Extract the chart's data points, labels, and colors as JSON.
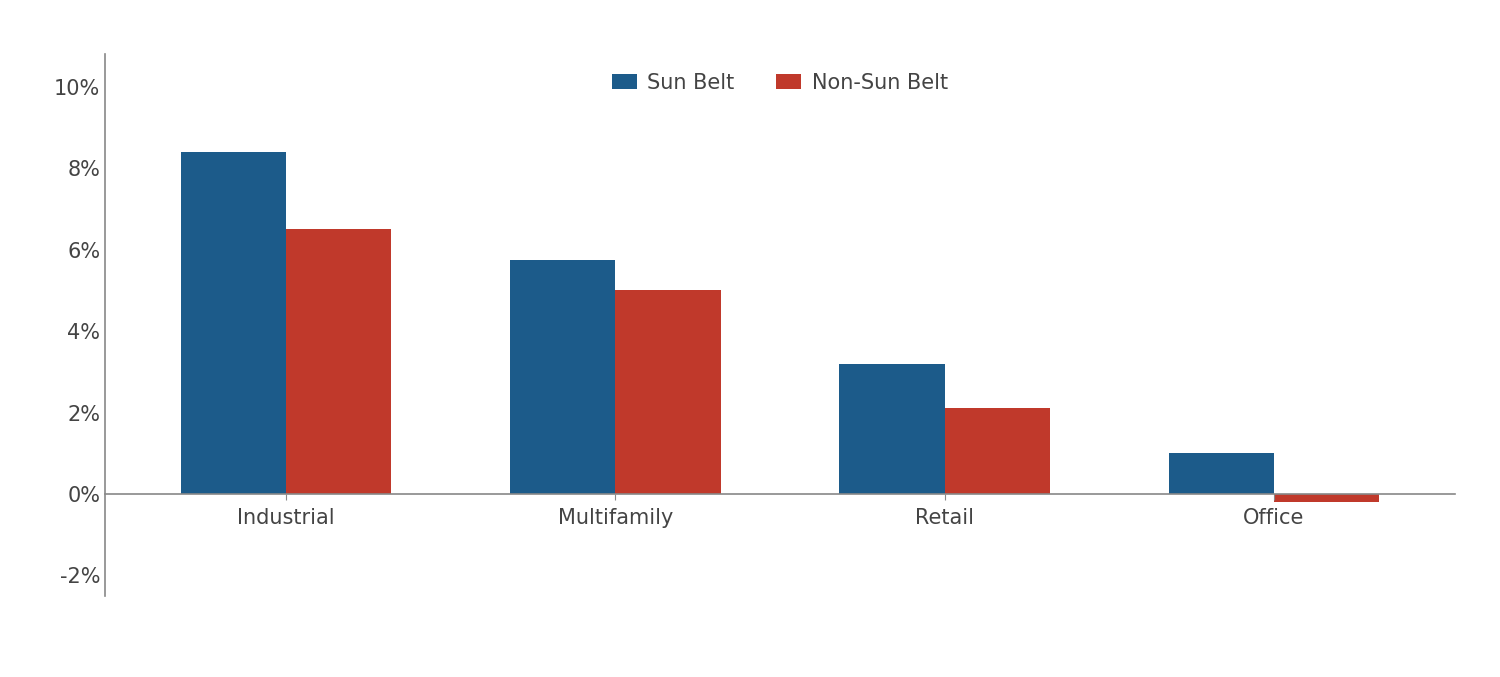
{
  "categories": [
    "Industrial",
    "Multifamily",
    "Retail",
    "Office"
  ],
  "sun_belt": [
    0.084,
    0.0575,
    0.032,
    0.01
  ],
  "non_sun_belt": [
    0.065,
    0.05,
    0.021,
    -0.002
  ],
  "sun_belt_color": "#1C5B8A",
  "non_sun_belt_color": "#C0392B",
  "legend_labels": [
    "Sun Belt",
    "Non-Sun Belt"
  ],
  "ylim": [
    -0.025,
    0.108
  ],
  "yticks": [
    -0.02,
    0.0,
    0.02,
    0.04,
    0.06,
    0.08,
    0.1
  ],
  "bar_width": 0.32,
  "background_color": "#ffffff",
  "tick_color": "#444444",
  "tick_label_fontsize": 15,
  "legend_fontsize": 15,
  "category_fontsize": 15,
  "spine_color": "#888888"
}
